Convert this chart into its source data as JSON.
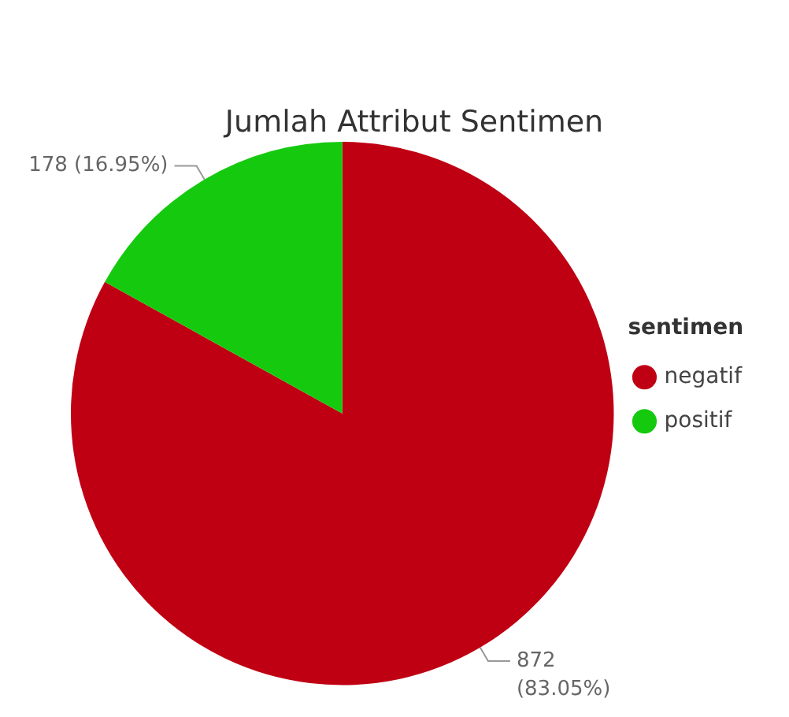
{
  "chart_data": {
    "type": "pie",
    "title": "Jumlah Attribut Sentimen",
    "legend_title": "sentimen",
    "legend": "right",
    "categories": [
      "negatif",
      "positif"
    ],
    "values": [
      872,
      178
    ],
    "colors": [
      "#bf0013",
      "#15c90f"
    ],
    "value_labels": [
      "872 (83.05%)",
      "178 (16.95%)"
    ]
  }
}
